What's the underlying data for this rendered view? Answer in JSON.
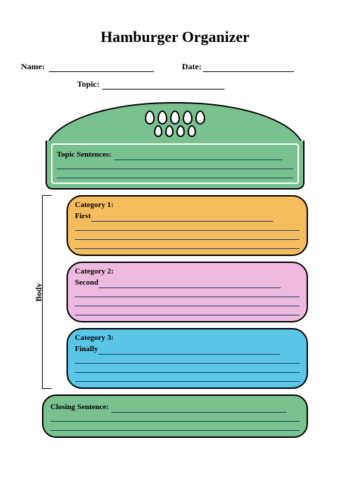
{
  "title": "Hamburger Organizer",
  "header": {
    "name_label": "Name:",
    "date_label": "Date:",
    "topic_label": "Topic:"
  },
  "bun_top": {
    "label": "Topic Sentences:",
    "fill_color": "#79c18f",
    "line_color": "#1a3a6a",
    "seed_count_row1": 5,
    "seed_count_row2": 4
  },
  "body_label": "Body",
  "fillings": [
    {
      "label": "Category 1:",
      "sublabel": "First",
      "fill_color": "#f6bd5e",
      "line_color": "#1a3a6a"
    },
    {
      "label": "Category 2:",
      "sublabel": "Second",
      "fill_color": "#eebadf",
      "line_color": "#1a3a6a"
    },
    {
      "label": "Category 3:",
      "sublabel": "Finally",
      "fill_color": "#5cc6e8",
      "line_color": "#1a3a6a"
    }
  ],
  "closing": {
    "label": "Closing Sentence:",
    "fill_color": "#79c18f",
    "line_color": "#1a3a6a"
  },
  "styling": {
    "page_bg": "#ffffff",
    "border_color": "#000000",
    "title_fontsize": 22,
    "label_fontsize": 11
  }
}
